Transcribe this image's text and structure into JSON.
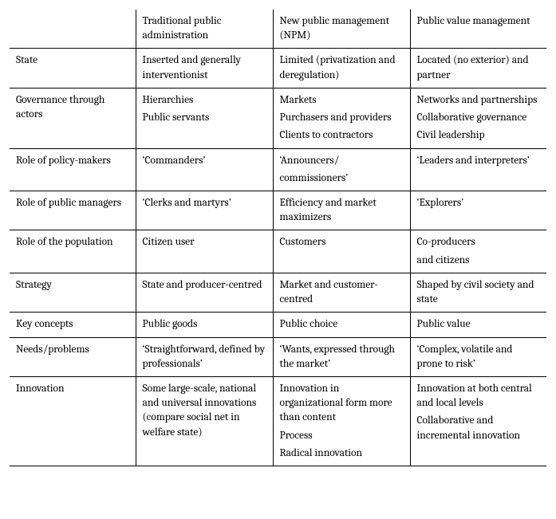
{
  "columns": [
    "",
    "Traditional public administration",
    "New public management (NPM)",
    "Public value management"
  ],
  "rows": {
    "state": {
      "label": "State",
      "trad": "Inserted and generally interventionist",
      "npm": "Limited (privatization and deregulation)",
      "pvm": "Located (no exterior) and partner"
    },
    "governance": {
      "label": "Governance through actors",
      "trad_1": "Hierarchies",
      "trad_2": "Public servants",
      "npm_1": "Markets",
      "npm_2": "Purchasers and providers",
      "npm_3": "Clients to contractors",
      "pvm_1": "Networks and partnerships",
      "pvm_2": "Collaborative governance",
      "pvm_3": "Civil leadership"
    },
    "policy_makers": {
      "label": "Role of policy-makers",
      "trad": "‘Commanders’",
      "npm_1": "‘Announcers/",
      "npm_2": "commissioners’",
      "pvm": "‘Leaders and interpreters’"
    },
    "public_managers": {
      "label": "Role of public managers",
      "trad": "‘Clerks and martyrs’",
      "npm": "Efficiency and market maximizers",
      "pvm": "‘Explorers’"
    },
    "population": {
      "label": "Role of the population",
      "trad": "Citizen user",
      "npm": "Customers",
      "pvm_1": "Co-producers",
      "pvm_2": "and citizens"
    },
    "strategy": {
      "label": "Strategy",
      "trad": "State and producer-centred",
      "npm": "Market and customer-centred",
      "pvm": "Shaped by civil society and state"
    },
    "key_concepts": {
      "label": "Key concepts",
      "trad": "Public goods",
      "npm": "Public choice",
      "pvm": "Public value"
    },
    "needs": {
      "label": "Needs/problems",
      "trad": "‘Straightforward, defined by professionals’",
      "npm": "‘Wants, expressed through the market’",
      "pvm": "‘Complex, volatile and prone to risk’"
    },
    "innovation": {
      "label": "Innovation",
      "trad": "Some large-scale, national and universal innovations (compare social net in welfare state)",
      "npm_1": "Innovation in organizational form more than content",
      "npm_2": "Process",
      "npm_3": "Radical innovation",
      "pvm_1": "Innovation at both central and local levels",
      "pvm_2": "Collaborative and incremental innovation"
    }
  }
}
